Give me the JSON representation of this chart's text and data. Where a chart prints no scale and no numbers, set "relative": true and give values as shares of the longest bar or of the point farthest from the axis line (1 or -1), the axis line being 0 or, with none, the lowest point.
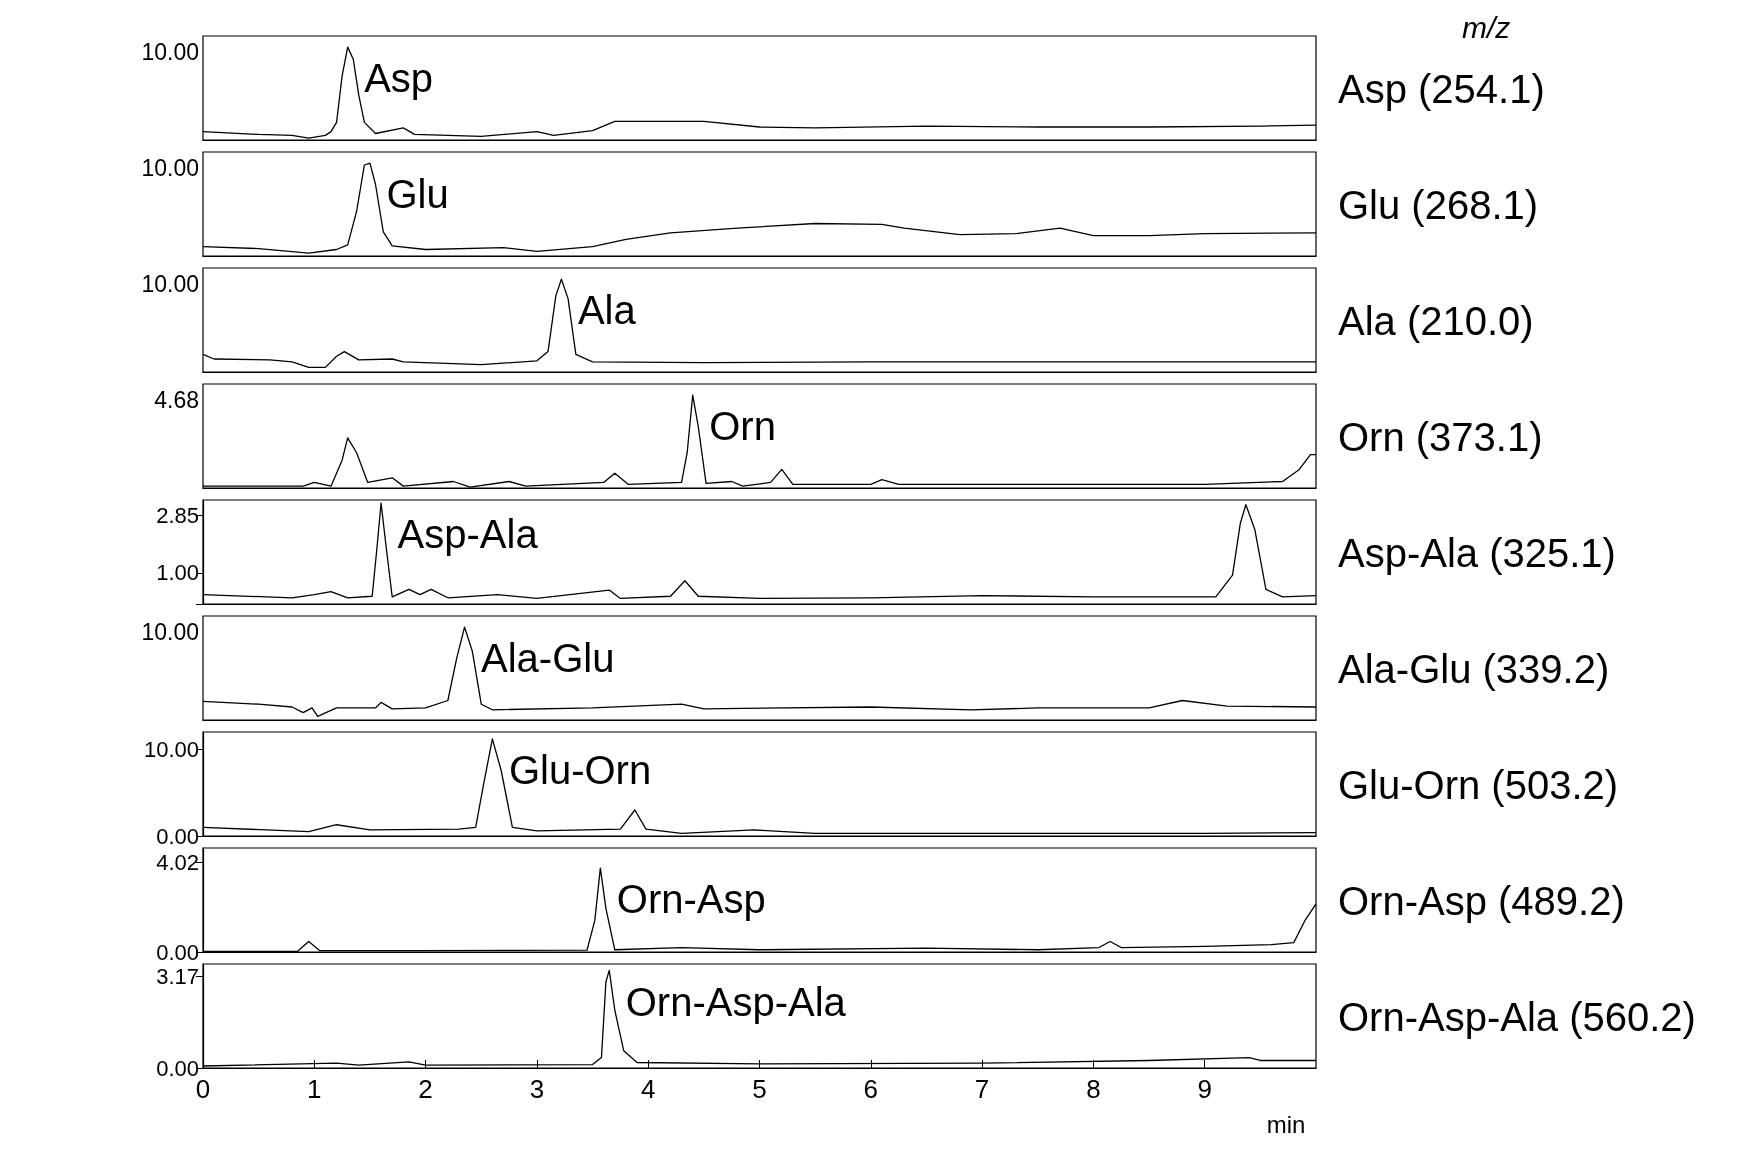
{
  "chart_data": [
    {
      "type": "line",
      "legend": "right",
      "legend_title": "m/z",
      "relative": true,
      "tick_labels": "y",
      "xlim": [
        0,
        10
      ],
      "xticks": [
        0,
        1,
        2,
        3,
        4,
        5,
        6,
        7,
        8,
        9
      ],
      "series": [
        {
          "name": "Asp (254.1)",
          "color": "#000000",
          "x": [
            0,
            0.5,
            0.8,
            0.95,
            1.1,
            1.15,
            1.2,
            1.25,
            1.3,
            1.35,
            1.4,
            1.45,
            1.55,
            1.8,
            1.9,
            2.5,
            3.0,
            3.15,
            3.5,
            3.7,
            4.0,
            4.5,
            5.0,
            5.5,
            6.5,
            7.5,
            8.5,
            9.5,
            10
          ],
          "values": [
            0.09,
            0.06,
            0.05,
            0.02,
            0.05,
            0.09,
            0.19,
            0.69,
            1,
            0.87,
            0.48,
            0.19,
            0.07,
            0.13,
            0.06,
            0.04,
            0.09,
            0.05,
            0.1,
            0.2,
            0.2,
            0.2,
            0.14,
            0.13,
            0.15,
            0.14,
            0.14,
            0.15,
            0.16
          ]
        }
      ],
      "annotations": [
        "10.00",
        {
          "text": "Asp",
          "x": 1.3,
          "y": 1
        }
      ]
    },
    {
      "type": "line",
      "legend": "right",
      "relative": true,
      "tick_labels": "y",
      "xlim": [
        0,
        10
      ],
      "xticks": [
        0,
        1,
        2,
        3,
        4,
        5,
        6,
        7,
        8,
        9
      ],
      "series": [
        {
          "name": "Glu (268.1)",
          "color": "#000000",
          "x": [
            0,
            0.5,
            0.95,
            1.2,
            1.3,
            1.38,
            1.45,
            1.5,
            1.55,
            1.62,
            1.7,
            2.0,
            2.7,
            3.0,
            3.5,
            3.8,
            4.2,
            4.8,
            5.5,
            6.1,
            6.3,
            6.8,
            7.3,
            7.7,
            8.0,
            8.5,
            9.0,
            10
          ],
          "values": [
            0.1,
            0.08,
            0.03,
            0.07,
            0.12,
            0.48,
            0.98,
            1,
            0.77,
            0.26,
            0.11,
            0.07,
            0.09,
            0.05,
            0.1,
            0.18,
            0.25,
            0.3,
            0.35,
            0.34,
            0.3,
            0.23,
            0.24,
            0.3,
            0.22,
            0.22,
            0.24,
            0.25
          ]
        }
      ],
      "annotations": [
        "10.00",
        {
          "text": "Glu",
          "x": 1.5,
          "y": 1
        }
      ]
    },
    {
      "type": "line",
      "legend": "right",
      "relative": true,
      "tick_labels": "y",
      "xlim": [
        0,
        10
      ],
      "xticks": [
        0,
        1,
        2,
        3,
        4,
        5,
        6,
        7,
        8,
        9
      ],
      "series": [
        {
          "name": "Ala (210.0)",
          "color": "#000000",
          "x": [
            0,
            0.1,
            0.6,
            0.8,
            0.95,
            1.1,
            1.2,
            1.27,
            1.4,
            1.7,
            1.8,
            2.5,
            3.0,
            3.1,
            3.17,
            3.22,
            3.28,
            3.35,
            3.5,
            4.5,
            6.0,
            7.5,
            9.0,
            10
          ],
          "values": [
            0.19,
            0.14,
            0.13,
            0.11,
            0.05,
            0.05,
            0.17,
            0.22,
            0.13,
            0.14,
            0.11,
            0.08,
            0.12,
            0.22,
            0.82,
            1,
            0.79,
            0.19,
            0.11,
            0.1,
            0.11,
            0.11,
            0.11,
            0.11
          ]
        }
      ],
      "annotations": [
        "10.00",
        {
          "text": "Ala",
          "x": 3.22,
          "y": 1
        }
      ]
    },
    {
      "type": "line",
      "legend": "right",
      "relative": true,
      "tick_labels": "y",
      "xlim": [
        0,
        10
      ],
      "xticks": [
        0,
        1,
        2,
        3,
        4,
        5,
        6,
        7,
        8,
        9
      ],
      "series": [
        {
          "name": "Orn (373.1)",
          "color": "#000000",
          "x": [
            0,
            0.9,
            1.0,
            1.15,
            1.25,
            1.3,
            1.38,
            1.48,
            1.7,
            1.8,
            2.25,
            2.4,
            2.75,
            2.9,
            3.6,
            3.7,
            3.82,
            4.3,
            4.35,
            4.4,
            4.45,
            4.52,
            4.75,
            4.85,
            5.1,
            5.2,
            5.3,
            6.0,
            6.1,
            6.25,
            7.5,
            9.0,
            9.7,
            9.85,
            9.95,
            10
          ],
          "values": [
            0.02,
            0.02,
            0.06,
            0.02,
            0.3,
            0.54,
            0.38,
            0.06,
            0.11,
            0.02,
            0.07,
            0.01,
            0.07,
            0.02,
            0.06,
            0.16,
            0.04,
            0.06,
            0.38,
            1,
            0.66,
            0.05,
            0.07,
            0.02,
            0.06,
            0.2,
            0.04,
            0.04,
            0.09,
            0.04,
            0.04,
            0.04,
            0.07,
            0.2,
            0.36,
            0.36
          ]
        }
      ],
      "annotations": [
        "4.68",
        {
          "text": "Orn",
          "x": 4.4,
          "y": 1
        }
      ]
    },
    {
      "type": "line",
      "legend": "right",
      "tick_labels": "y",
      "xlim": [
        0,
        10
      ],
      "xticks": [
        0,
        1,
        2,
        3,
        4,
        5,
        6,
        7,
        8,
        9
      ],
      "ylim": [
        0,
        3.35
      ],
      "yticks": [
        {
          "value": 0,
          "label": null
        },
        {
          "value": 1,
          "label": "1.00"
        },
        {
          "value": 2.85,
          "label": "2.85"
        }
      ],
      "series": [
        {
          "name": "Asp-Ala (325.1)",
          "color": "#000000",
          "x": [
            0,
            0.8,
            1.0,
            1.15,
            1.3,
            1.52,
            1.56,
            1.6,
            1.65,
            1.7,
            1.85,
            1.95,
            2.05,
            2.2,
            2.65,
            3.0,
            3.65,
            3.75,
            4.2,
            4.33,
            4.45,
            5.0,
            6.0,
            7.0,
            8.0,
            9.1,
            9.25,
            9.32,
            9.37,
            9.45,
            9.55,
            9.7,
            10
          ],
          "values": [
            0.3,
            0.2,
            0.3,
            0.4,
            0.2,
            0.25,
            1.7,
            3.25,
            1.7,
            0.23,
            0.47,
            0.3,
            0.47,
            0.2,
            0.3,
            0.18,
            0.45,
            0.18,
            0.25,
            0.75,
            0.25,
            0.18,
            0.2,
            0.27,
            0.23,
            0.23,
            0.93,
            2.6,
            3.2,
            2.4,
            0.47,
            0.23,
            0.27
          ]
        }
      ],
      "annotations": [
        {
          "text": "Asp-Ala",
          "x": 1.6,
          "y": 3.25
        }
      ]
    },
    {
      "type": "line",
      "legend": "right",
      "relative": true,
      "tick_labels": "y",
      "xlim": [
        0,
        10
      ],
      "xticks": [
        0,
        1,
        2,
        3,
        4,
        5,
        6,
        7,
        8,
        9
      ],
      "series": [
        {
          "name": "Ala-Glu (339.2)",
          "color": "#000000",
          "x": [
            0,
            0.5,
            0.8,
            0.9,
            0.98,
            1.03,
            1.2,
            1.55,
            1.6,
            1.7,
            2.0,
            2.2,
            2.28,
            2.35,
            2.42,
            2.5,
            2.6,
            3.5,
            4.3,
            4.5,
            6.0,
            6.9,
            7.5,
            8.5,
            8.8,
            9.2,
            10
          ],
          "values": [
            0.2,
            0.17,
            0.14,
            0.08,
            0.13,
            0.04,
            0.13,
            0.13,
            0.19,
            0.12,
            0.13,
            0.21,
            0.67,
            1,
            0.74,
            0.17,
            0.11,
            0.13,
            0.17,
            0.12,
            0.14,
            0.11,
            0.13,
            0.13,
            0.21,
            0.15,
            0.14
          ]
        }
      ],
      "annotations": [
        "10.00",
        {
          "text": "Ala-Glu",
          "x": 2.35,
          "y": 1
        }
      ]
    },
    {
      "type": "line",
      "legend": "right",
      "tick_labels": "y",
      "xlim": [
        0,
        10
      ],
      "xticks": [
        0,
        1,
        2,
        3,
        4,
        5,
        6,
        7,
        8,
        9
      ],
      "ylim": [
        0,
        12
      ],
      "yticks": [
        {
          "value": 0,
          "label": "0.00"
        },
        {
          "value": 10,
          "label": "10.00"
        }
      ],
      "series": [
        {
          "name": "Glu-Orn (503.2)",
          "color": "#000000",
          "x": [
            0,
            0.95,
            1.2,
            1.5,
            2.3,
            2.45,
            2.52,
            2.6,
            2.68,
            2.78,
            3.0,
            3.75,
            3.88,
            3.98,
            4.3,
            4.95,
            5.5,
            7.0,
            9.0,
            10
          ],
          "values": [
            1.0,
            0.5,
            1.3,
            0.7,
            0.8,
            1.0,
            5.9,
            11.2,
            7.5,
            1.0,
            0.6,
            0.8,
            3.0,
            0.8,
            0.3,
            0.7,
            0.3,
            0.3,
            0.3,
            0.4
          ]
        }
      ],
      "annotations": [
        {
          "text": "Glu-Orn",
          "x": 2.6,
          "y": 11.2
        }
      ]
    },
    {
      "type": "line",
      "legend": "right",
      "tick_labels": "y",
      "xlim": [
        0,
        10
      ],
      "xticks": [
        0,
        1,
        2,
        3,
        4,
        5,
        6,
        7,
        8,
        9
      ],
      "ylim": [
        0,
        4.65
      ],
      "yticks": [
        {
          "value": 0,
          "label": "0.00"
        },
        {
          "value": 4.02,
          "label": "4.02"
        }
      ],
      "series": [
        {
          "name": "Orn-Asp (489.2)",
          "color": "#000000",
          "x": [
            0,
            0.85,
            0.95,
            1.05,
            2.0,
            3.45,
            3.52,
            3.57,
            3.62,
            3.7,
            4.3,
            5.0,
            6.5,
            7.5,
            8.05,
            8.15,
            8.25,
            9.0,
            9.6,
            9.8,
            9.9,
            10
          ],
          "values": [
            0.03,
            0.03,
            0.47,
            0.06,
            0.06,
            0.08,
            1.4,
            3.75,
            1.95,
            0.1,
            0.2,
            0.1,
            0.17,
            0.1,
            0.2,
            0.47,
            0.2,
            0.25,
            0.33,
            0.42,
            1.4,
            2.15
          ]
        }
      ],
      "annotations": [
        {
          "text": "Orn-Asp",
          "x": 3.57,
          "y": 3.75
        }
      ]
    },
    {
      "type": "line",
      "legend": "right",
      "xlabel": "min",
      "xlim": [
        0,
        10
      ],
      "xticks": [
        0,
        1,
        2,
        3,
        4,
        5,
        6,
        7,
        8,
        9
      ],
      "ylim": [
        0,
        3.6
      ],
      "yticks": [
        {
          "value": 0,
          "label": "0.00"
        },
        {
          "value": 3.17,
          "label": "3.17"
        }
      ],
      "series": [
        {
          "name": "Orn-Asp-Ala (560.2)",
          "color": "#000000",
          "x": [
            0,
            1.2,
            1.4,
            1.85,
            2.0,
            3.5,
            3.58,
            3.62,
            3.65,
            3.7,
            3.78,
            3.9,
            5.0,
            7.0,
            8.5,
            9.4,
            9.5,
            10
          ],
          "values": [
            0.07,
            0.17,
            0.1,
            0.21,
            0.1,
            0.12,
            0.36,
            2.98,
            3.38,
            2.0,
            0.6,
            0.19,
            0.14,
            0.17,
            0.26,
            0.36,
            0.26,
            0.26
          ]
        }
      ],
      "annotations": [
        {
          "text": "Orn-Asp-Ala",
          "x": 3.65,
          "y": 3.38
        }
      ]
    }
  ]
}
